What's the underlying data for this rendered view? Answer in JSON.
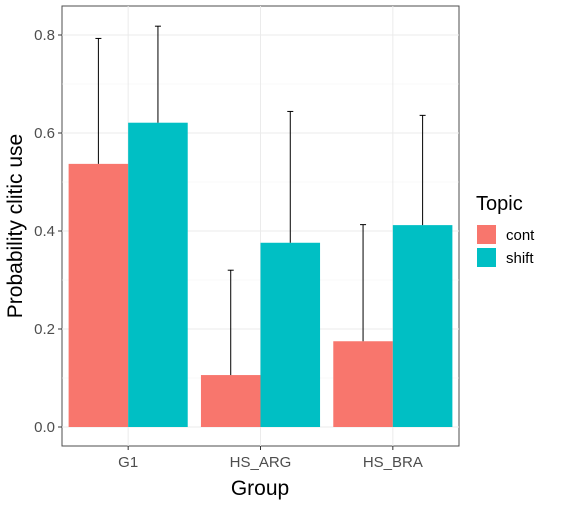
{
  "chart_data": {
    "type": "bar",
    "xlabel": "Group",
    "ylabel": "Probability clitic use",
    "categories": [
      "G1",
      "HS_ARG",
      "HS_BRA"
    ],
    "series": [
      {
        "name": "cont",
        "color": "#F8766D",
        "values": [
          0.537,
          0.106,
          0.175
        ],
        "error_upper": [
          0.793,
          0.32,
          0.413
        ]
      },
      {
        "name": "shift",
        "color": "#00BFC4",
        "values": [
          0.621,
          0.376,
          0.412
        ],
        "error_upper": [
          0.818,
          0.644,
          0.636
        ]
      }
    ],
    "ylim": [
      0,
      0.86
    ],
    "yticks": [
      0.0,
      0.2,
      0.4,
      0.6,
      0.8
    ],
    "ytick_labels": [
      "0.0",
      "0.2",
      "0.4",
      "0.6",
      "0.8"
    ],
    "grid": true,
    "legend": {
      "title": "Topic",
      "position": "right"
    }
  }
}
